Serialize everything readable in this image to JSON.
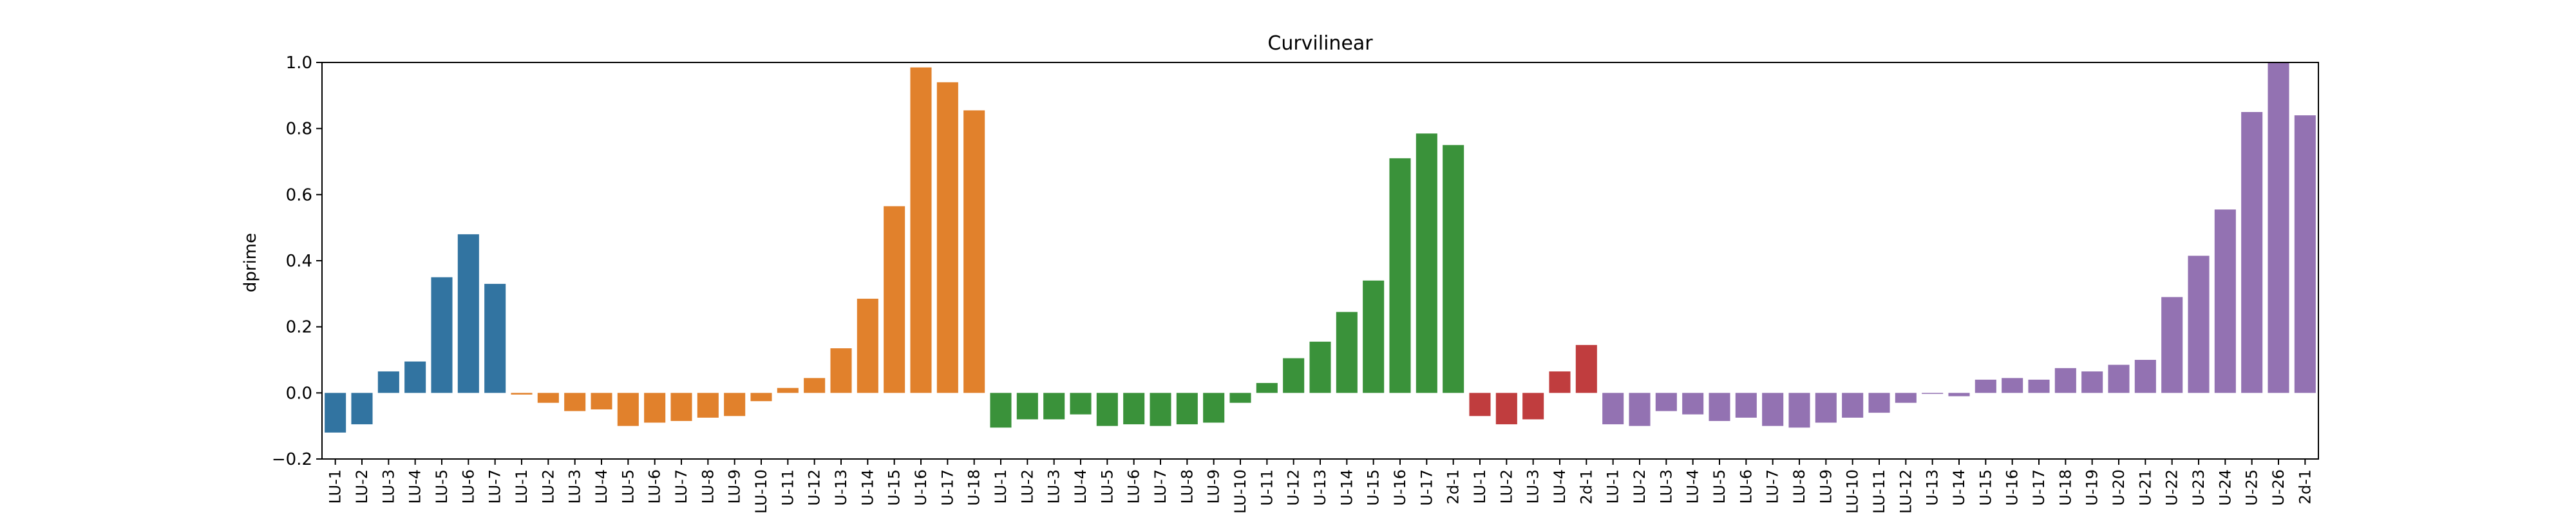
{
  "chart_data": {
    "type": "bar",
    "title": "Curvilinear",
    "xlabel": "",
    "ylabel": "dprime",
    "ylim": [
      -0.2,
      1.0
    ],
    "yticks": [
      "−0.2",
      "0.0",
      "0.2",
      "0.4",
      "0.6",
      "0.8",
      "1.0"
    ],
    "ytick_values": [
      -0.2,
      0.0,
      0.2,
      0.4,
      0.6,
      0.8,
      1.0
    ],
    "grid": false,
    "groups": [
      {
        "color": "#3274a1",
        "categories": [
          "LU-1",
          "LU-2",
          "LU-3",
          "LU-4",
          "LU-5",
          "LU-6",
          "LU-7"
        ],
        "values": [
          -0.12,
          -0.095,
          0.065,
          0.095,
          0.35,
          0.48,
          0.33
        ]
      },
      {
        "color": "#e1812c",
        "categories": [
          "LU-1",
          "LU-2",
          "LU-3",
          "LU-4",
          "LU-5",
          "LU-6",
          "LU-7",
          "LU-8",
          "LU-9",
          "LU-10",
          "U-11",
          "U-12",
          "U-13",
          "U-14",
          "U-15",
          "U-16",
          "U-17",
          "U-18"
        ],
        "values": [
          -0.005,
          -0.03,
          -0.055,
          -0.05,
          -0.1,
          -0.09,
          -0.085,
          -0.075,
          -0.07,
          -0.025,
          0.015,
          0.045,
          0.135,
          0.285,
          0.565,
          0.985,
          0.94,
          0.855
        ]
      },
      {
        "color": "#3a923a",
        "categories": [
          "LU-1",
          "LU-2",
          "LU-3",
          "LU-4",
          "LU-5",
          "LU-6",
          "LU-7",
          "LU-8",
          "LU-9",
          "LU-10",
          "U-11",
          "U-12",
          "U-13",
          "U-14",
          "U-15",
          "U-16",
          "U-17",
          "2d-1"
        ],
        "values": [
          -0.105,
          -0.08,
          -0.08,
          -0.065,
          -0.1,
          -0.095,
          -0.1,
          -0.095,
          -0.09,
          -0.03,
          0.03,
          0.105,
          0.155,
          0.245,
          0.34,
          0.71,
          0.785,
          0.75
        ]
      },
      {
        "color": "#c03d3e",
        "categories": [
          "LU-1",
          "LU-2",
          "LU-3",
          "LU-4",
          "2d-1"
        ],
        "values": [
          -0.07,
          -0.095,
          -0.08,
          0.065,
          0.145
        ]
      },
      {
        "color": "#9372b2",
        "categories": [
          "LU-1",
          "LU-2",
          "LU-3",
          "LU-4",
          "LU-5",
          "LU-6",
          "LU-7",
          "LU-8",
          "LU-9",
          "LU-10",
          "LU-11",
          "LU-12",
          "U-13",
          "U-14",
          "U-15",
          "U-16",
          "U-17",
          "U-18",
          "U-19",
          "U-20",
          "U-21",
          "U-22",
          "U-23",
          "U-24",
          "U-25",
          "U-26",
          "2d-1"
        ],
        "values": [
          -0.095,
          -0.1,
          -0.055,
          -0.065,
          -0.085,
          -0.075,
          -0.1,
          -0.105,
          -0.09,
          -0.075,
          -0.06,
          -0.03,
          -0.003,
          -0.01,
          0.04,
          0.045,
          0.04,
          0.075,
          0.065,
          0.085,
          0.1,
          0.29,
          0.415,
          0.555,
          0.85,
          1.0,
          0.84
        ]
      }
    ]
  }
}
